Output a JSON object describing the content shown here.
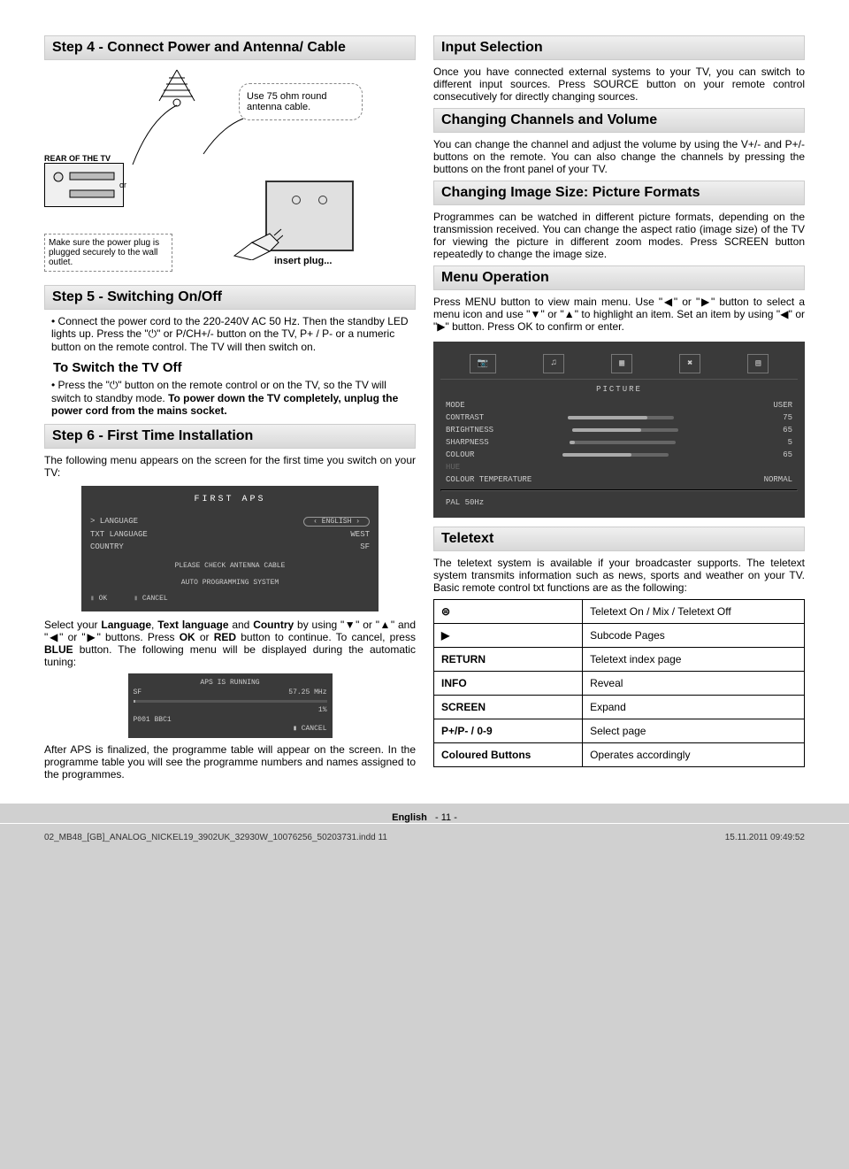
{
  "left": {
    "step4_title": "Step 4 - Connect Power and Antenna/ Cable",
    "bubble": "Use 75 ohm round antenna cable.",
    "rear_label": "REAR OF THE TV",
    "or_label": "or",
    "power_note": "Make sure the power plug is plugged securely to the wall outlet.",
    "insert_label": "insert plug...",
    "step5_title": "Step 5 - Switching On/Off",
    "step5_bullet": "Connect the power cord to the 220-240V AC 50 Hz. Then the standby LED lights up. Press the \"⏻\" or P/CH+/- button on the TV, P+ / P- or a numeric button on the remote control. The TV will then switch on.",
    "switch_off_title": "To Switch the TV Off",
    "switch_off_p1": "Press the \"⏻\" button on the remote control or on the TV, so the TV will switch to standby mode. ",
    "switch_off_bold": "To power down the TV completely, unplug the power cord from the mains socket.",
    "step6_title": "Step 6 - First Time Installation",
    "step6_intro": "The following menu appears on the screen for the first time you switch on your TV:",
    "menu1": {
      "title": "FIRST APS",
      "rows": [
        {
          "l": "> LANGUAGE",
          "r": "ENGLISH"
        },
        {
          "l": "TXT LANGUAGE",
          "r": "WEST"
        },
        {
          "l": "COUNTRY",
          "r": "SF"
        }
      ],
      "check": "PLEASE CHECK ANTENNA CABLE",
      "auto": "AUTO PROGRAMMING SYSTEM",
      "ok": "OK",
      "cancel": "CANCEL"
    },
    "step6_p1a": "Select your ",
    "step6_p1b": "Language",
    "step6_p1c": ", ",
    "step6_p1d": "Text language",
    "step6_p1e": " and ",
    "step6_p1f": "Country",
    "step6_p1g": " by using \"▼\" or \"▲\" and \"◀\" or \"▶\" buttons. Press ",
    "step6_p1h": "OK",
    "step6_p1i": " or ",
    "step6_p1j": "RED",
    "step6_p1k": " button to continue. To cancel, press ",
    "step6_p1l": "BLUE",
    "step6_p1m": " button. The following menu will be displayed during the automatic tuning:",
    "menu2": {
      "title": "APS IS RUNNING",
      "l1": "SF",
      "l1r": "57.25 MHz",
      "l2r": "1%",
      "l3": "P001 BBC1",
      "cancel": "CANCEL"
    },
    "step6_end": "After APS is finalized, the programme table will appear on the screen. In the programme table you will see the programme numbers and names assigned to the programmes."
  },
  "right": {
    "input_title": "Input Selection",
    "input_p": "Once you have connected external systems to your TV, you can switch to different input sources. Press SOURCE button on your remote control consecutively for directly changing sources.",
    "channels_title": "Changing Channels and Volume",
    "channels_p": "You can change the channel and adjust the volume by using the V+/- and P+/- buttons on the remote. You can also change the channels by pressing the buttons on the front panel of your TV.",
    "picture_title": "Changing Image Size: Picture Formats",
    "picture_p": "Programmes can be watched in different picture formats, depending on the transmission received. You can change the aspect ratio (image size) of the TV for viewing the picture in different zoom modes. Press SCREEN button repeatedly to change the image size.",
    "menuop_title": "Menu Operation",
    "menuop_p": "Press MENU button to view main menu. Use \"◀\" or \"▶\" button to select a menu icon and use \"▼\" or \"▲\" to highlight an item. Set an item by using \"◀\" or \"▶\" button. Press OK to confirm or enter.",
    "pic_menu": {
      "title": "PICTURE",
      "rows": [
        {
          "l": "MODE",
          "r": "USER",
          "slider": false
        },
        {
          "l": "CONTRAST",
          "r": "75",
          "slider": "s75"
        },
        {
          "l": "BRIGHTNESS",
          "r": "65",
          "slider": "s65"
        },
        {
          "l": "SHARPNESS",
          "r": "5",
          "slider": "s5"
        },
        {
          "l": "COLOUR",
          "r": "65",
          "slider": "s65"
        },
        {
          "l": "HUE",
          "r": "",
          "slider": false,
          "dim": true
        },
        {
          "l": "COLOUR TEMPERATURE",
          "r": "NORMAL",
          "slider": false
        }
      ],
      "footer": "PAL 50Hz"
    },
    "ttx_title": "Teletext",
    "ttx_p": "The teletext system is available if your broadcaster supports. The teletext system transmits information such as news, sports and weather on your TV. Basic remote control txt functions are as the following:",
    "ttx_rows": [
      {
        "k": "⊜",
        "v": "Teletext On / Mix / Teletext Off"
      },
      {
        "k": "▶",
        "v": "Subcode Pages"
      },
      {
        "k": "RETURN",
        "v": "Teletext index page"
      },
      {
        "k": "INFO",
        "v": "Reveal"
      },
      {
        "k": "SCREEN",
        "v": "Expand"
      },
      {
        "k": "P+/P- / 0-9",
        "v": "Select page"
      },
      {
        "k": "Coloured Buttons",
        "v": "Operates accordingly"
      }
    ]
  },
  "page_lang": "English",
  "page_num": "- 11 -",
  "footer_left": "02_MB48_[GB]_ANALOG_NICKEL19_3902UK_32930W_10076256_50203731.indd   11",
  "footer_right": "15.11.2011   09:49:52"
}
